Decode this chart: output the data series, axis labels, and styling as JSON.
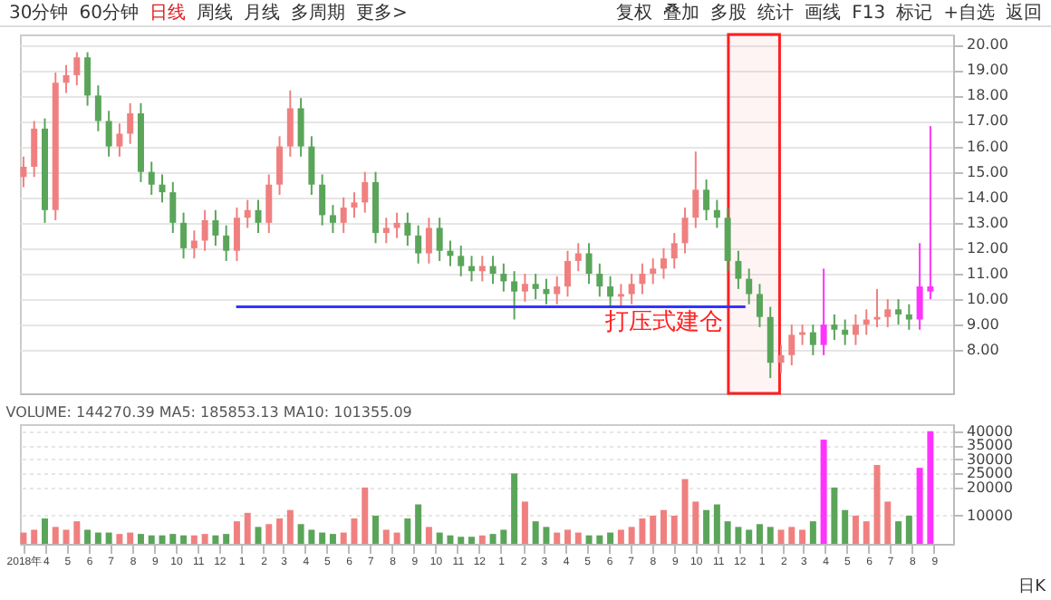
{
  "chart_data": [
    {
      "type": "candlestick",
      "tick_labels": "y",
      "grid": "y",
      "annotations": [
        "30分钟",
        "60分钟",
        "日线",
        "周线",
        "月线",
        "多周期",
        "更多>",
        "复权",
        "叠加",
        "多股",
        "统计",
        "画线",
        "F13",
        "标记",
        "+自选",
        "返回",
        "打压式建仓"
      ],
      "x": [
        "2018-03-01",
        "2018-03-16",
        "2018-03-31",
        "2018-04-15",
        "2018-04-30",
        "2018-05-15",
        "2018-05-30",
        "2018-06-14",
        "2018-06-29",
        "2018-07-14",
        "2018-07-29",
        "2018-08-13",
        "2018-08-28",
        "2018-09-12",
        "2018-09-27",
        "2018-10-12",
        "2018-10-27",
        "2018-11-11",
        "2018-11-26",
        "2018-12-11",
        "2018-12-26",
        "2019-01-10",
        "2019-01-25",
        "2019-02-09",
        "2019-02-24",
        "2019-03-11",
        "2019-03-26",
        "2019-04-10",
        "2019-04-25",
        "2019-05-10",
        "2019-05-25",
        "2019-06-09",
        "2019-06-24",
        "2019-07-09",
        "2019-07-24",
        "2019-08-08",
        "2019-08-23",
        "2019-09-07",
        "2019-09-22",
        "2019-10-07",
        "2019-10-22",
        "2019-11-06",
        "2019-11-21",
        "2019-12-06",
        "2019-12-21",
        "2020-01-05",
        "2020-01-20",
        "2020-02-04",
        "2020-02-19",
        "2020-03-05",
        "2020-03-20",
        "2020-04-04",
        "2020-04-19",
        "2020-05-04",
        "2020-05-19",
        "2020-06-03",
        "2020-06-18",
        "2020-07-03",
        "2020-07-18",
        "2020-08-02",
        "2020-08-17",
        "2020-09-01",
        "2020-09-16",
        "2020-10-01",
        "2020-10-16",
        "2020-10-31",
        "2020-11-15",
        "2020-11-30",
        "2020-12-15",
        "2020-12-30",
        "2021-01-14",
        "2021-01-29",
        "2021-02-13",
        "2021-02-28",
        "2021-03-15",
        "2021-03-30",
        "2021-04-14",
        "2021-04-29",
        "2021-05-14",
        "2021-05-29",
        "2021-06-13",
        "2021-06-28",
        "2021-07-13",
        "2021-07-28",
        "2021-08-12",
        "2021-08-27"
      ],
      "ohlc": [
        [
          14.8,
          15.6,
          14.4,
          15.2
        ],
        [
          15.2,
          17.0,
          14.8,
          16.7
        ],
        [
          16.7,
          17.1,
          13.0,
          13.5
        ],
        [
          13.5,
          18.9,
          13.1,
          18.5
        ],
        [
          18.5,
          19.2,
          18.1,
          18.8
        ],
        [
          18.8,
          19.7,
          18.4,
          19.5
        ],
        [
          19.5,
          19.7,
          17.6,
          18.0
        ],
        [
          18.0,
          18.4,
          16.6,
          17.0
        ],
        [
          17.0,
          17.4,
          15.6,
          16.0
        ],
        [
          16.0,
          16.9,
          15.6,
          16.5
        ],
        [
          16.5,
          17.7,
          16.1,
          17.3
        ],
        [
          17.3,
          17.7,
          14.6,
          15.0
        ],
        [
          15.0,
          15.4,
          14.1,
          14.5
        ],
        [
          14.5,
          14.9,
          13.8,
          14.2
        ],
        [
          14.2,
          14.6,
          12.6,
          13.0
        ],
        [
          13.0,
          13.4,
          11.6,
          12.0
        ],
        [
          12.0,
          12.7,
          11.6,
          12.3
        ],
        [
          12.3,
          13.5,
          11.9,
          13.1
        ],
        [
          13.1,
          13.5,
          12.1,
          12.5
        ],
        [
          12.5,
          12.9,
          11.5,
          11.9
        ],
        [
          11.9,
          13.6,
          11.5,
          13.2
        ],
        [
          13.2,
          13.9,
          12.8,
          13.5
        ],
        [
          13.5,
          13.9,
          12.6,
          13.0
        ],
        [
          13.0,
          14.9,
          12.6,
          14.5
        ],
        [
          14.5,
          16.4,
          14.1,
          16.0
        ],
        [
          16.0,
          18.2,
          15.6,
          17.5
        ],
        [
          17.5,
          17.9,
          15.6,
          16.0
        ],
        [
          16.0,
          16.4,
          14.1,
          14.5
        ],
        [
          14.5,
          14.9,
          12.9,
          13.3
        ],
        [
          13.3,
          13.7,
          12.6,
          13.0
        ],
        [
          13.0,
          14.0,
          12.6,
          13.6
        ],
        [
          13.6,
          14.2,
          13.2,
          13.8
        ],
        [
          13.8,
          15.0,
          13.4,
          14.6
        ],
        [
          14.6,
          15.0,
          12.2,
          12.6
        ],
        [
          12.6,
          13.2,
          12.2,
          12.8
        ],
        [
          12.8,
          13.4,
          12.4,
          13.0
        ],
        [
          13.0,
          13.4,
          12.1,
          12.5
        ],
        [
          12.5,
          12.9,
          11.4,
          11.8
        ],
        [
          11.8,
          13.2,
          11.4,
          12.8
        ],
        [
          12.8,
          13.2,
          11.5,
          11.9
        ],
        [
          11.9,
          12.3,
          11.3,
          11.7
        ],
        [
          11.7,
          12.1,
          10.9,
          11.3
        ],
        [
          11.3,
          11.7,
          10.7,
          11.1
        ],
        [
          11.1,
          11.7,
          10.7,
          11.3
        ],
        [
          11.3,
          11.7,
          10.6,
          11.0
        ],
        [
          11.0,
          11.4,
          10.3,
          10.7
        ],
        [
          10.7,
          11.1,
          9.2,
          10.3
        ],
        [
          10.3,
          11.0,
          9.9,
          10.6
        ],
        [
          10.6,
          11.0,
          10.0,
          10.4
        ],
        [
          10.4,
          10.8,
          9.8,
          10.2
        ],
        [
          10.2,
          10.9,
          9.8,
          10.5
        ],
        [
          10.5,
          11.9,
          10.1,
          11.5
        ],
        [
          11.5,
          12.2,
          11.1,
          11.8
        ],
        [
          11.8,
          12.2,
          10.6,
          11.0
        ],
        [
          11.0,
          11.4,
          10.1,
          10.5
        ],
        [
          10.5,
          10.9,
          9.7,
          10.1
        ],
        [
          10.1,
          10.6,
          9.7,
          10.2
        ],
        [
          10.2,
          11.0,
          9.8,
          10.6
        ],
        [
          10.6,
          11.4,
          10.2,
          11.0
        ],
        [
          11.0,
          11.6,
          10.6,
          11.2
        ],
        [
          11.2,
          12.0,
          10.8,
          11.6
        ],
        [
          11.6,
          12.6,
          11.2,
          12.2
        ],
        [
          12.2,
          13.6,
          11.8,
          13.2
        ],
        [
          13.2,
          15.8,
          12.8,
          14.3
        ],
        [
          14.3,
          14.7,
          13.1,
          13.5
        ],
        [
          13.5,
          13.9,
          12.8,
          13.2
        ],
        [
          13.2,
          13.6,
          11.1,
          11.5
        ],
        [
          11.5,
          11.9,
          10.4,
          10.8
        ],
        [
          10.8,
          11.2,
          9.8,
          10.2
        ],
        [
          10.2,
          10.6,
          8.9,
          9.3
        ],
        [
          9.3,
          9.7,
          6.9,
          7.5
        ],
        [
          7.5,
          8.2,
          7.1,
          7.8
        ],
        [
          7.8,
          9.0,
          7.4,
          8.6
        ],
        [
          8.6,
          9.0,
          8.2,
          8.7
        ],
        [
          8.7,
          9.0,
          7.8,
          8.2
        ],
        [
          8.2,
          11.2,
          7.8,
          9.0
        ],
        [
          9.0,
          9.4,
          8.4,
          8.8
        ],
        [
          8.8,
          9.2,
          8.2,
          8.6
        ],
        [
          8.6,
          9.4,
          8.2,
          9.0
        ],
        [
          9.0,
          9.6,
          8.6,
          9.2
        ],
        [
          9.2,
          10.4,
          8.9,
          9.3
        ],
        [
          9.3,
          10.0,
          8.9,
          9.6
        ],
        [
          9.6,
          10.0,
          9.0,
          9.4
        ],
        [
          9.4,
          9.8,
          8.8,
          9.2
        ],
        [
          9.2,
          12.2,
          8.8,
          10.5
        ],
        [
          10.5,
          16.8,
          10.0,
          10.3
        ]
      ],
      "colors": [
        "#f08080",
        "#f08080",
        "#5aa55a",
        "#f08080",
        "#f08080",
        "#f08080",
        "#5aa55a",
        "#5aa55a",
        "#5aa55a",
        "#f08080",
        "#f08080",
        "#5aa55a",
        "#5aa55a",
        "#5aa55a",
        "#5aa55a",
        "#5aa55a",
        "#f08080",
        "#f08080",
        "#5aa55a",
        "#5aa55a",
        "#f08080",
        "#f08080",
        "#5aa55a",
        "#f08080",
        "#f08080",
        "#f08080",
        "#5aa55a",
        "#5aa55a",
        "#5aa55a",
        "#5aa55a",
        "#f08080",
        "#f08080",
        "#f08080",
        "#5aa55a",
        "#f08080",
        "#f08080",
        "#5aa55a",
        "#5aa55a",
        "#f08080",
        "#5aa55a",
        "#5aa55a",
        "#5aa55a",
        "#5aa55a",
        "#f08080",
        "#5aa55a",
        "#5aa55a",
        "#5aa55a",
        "#f08080",
        "#5aa55a",
        "#5aa55a",
        "#f08080",
        "#f08080",
        "#f08080",
        "#5aa55a",
        "#5aa55a",
        "#5aa55a",
        "#f08080",
        "#f08080",
        "#f08080",
        "#f08080",
        "#f08080",
        "#f08080",
        "#f08080",
        "#f08080",
        "#5aa55a",
        "#5aa55a",
        "#5aa55a",
        "#5aa55a",
        "#5aa55a",
        "#5aa55a",
        "#5aa55a",
        "#f08080",
        "#f08080",
        "#f08080",
        "#5aa55a",
        "#ff33ff",
        "#5aa55a",
        "#5aa55a",
        "#f08080",
        "#f08080",
        "#f08080",
        "#f08080",
        "#5aa55a",
        "#5aa55a",
        "#ff33ff",
        "#ff33ff"
      ],
      "series": [
        {
          "type": "line",
          "color": "#3333ff",
          "x": [
            "2018-12-25",
            "2020-12-10"
          ],
          "values": [
            9.7,
            9.7
          ]
        }
      ],
      "bands": [
        {
          "axis": "x",
          "from": "2020-11-16",
          "to": "2021-01-27",
          "color": "#ff2020"
        }
      ],
      "xlim": [
        "2018-02-24",
        "2021-09-28"
      ],
      "ylim": [
        6.3,
        20.4
      ],
      "yticks": [
        {
          "value": 8,
          "label": "8.00"
        },
        {
          "value": 9,
          "label": "9.00"
        },
        {
          "value": 10,
          "label": "10.00"
        },
        {
          "value": 11,
          "label": "11.00"
        },
        {
          "value": 12,
          "label": "12.00"
        },
        {
          "value": 13,
          "label": "13.00"
        },
        {
          "value": 14,
          "label": "14.00"
        },
        {
          "value": 15,
          "label": "15.00"
        },
        {
          "value": 16,
          "label": "16.00"
        },
        {
          "value": 17,
          "label": "17.00"
        },
        {
          "value": 18,
          "label": "18.00"
        },
        {
          "value": 19,
          "label": "19.00"
        },
        {
          "value": 20,
          "label": "20.00"
        }
      ]
    },
    {
      "type": "bar",
      "title": "VOLUME: 144270.39  MA5: 185853.13  MA10: 101355.09",
      "grid": "y",
      "annotations": [
        "日K"
      ],
      "x": [
        "2018-03-01",
        "2018-03-16",
        "2018-03-31",
        "2018-04-15",
        "2018-04-30",
        "2018-05-15",
        "2018-05-30",
        "2018-06-14",
        "2018-06-29",
        "2018-07-14",
        "2018-07-29",
        "2018-08-13",
        "2018-08-28",
        "2018-09-12",
        "2018-09-27",
        "2018-10-12",
        "2018-10-27",
        "2018-11-11",
        "2018-11-26",
        "2018-12-11",
        "2018-12-26",
        "2019-01-10",
        "2019-01-25",
        "2019-02-09",
        "2019-02-24",
        "2019-03-11",
        "2019-03-26",
        "2019-04-10",
        "2019-04-25",
        "2019-05-10",
        "2019-05-25",
        "2019-06-09",
        "2019-06-24",
        "2019-07-09",
        "2019-07-24",
        "2019-08-08",
        "2019-08-23",
        "2019-09-07",
        "2019-09-22",
        "2019-10-07",
        "2019-10-22",
        "2019-11-06",
        "2019-11-21",
        "2019-12-06",
        "2019-12-21",
        "2020-01-05",
        "2020-01-20",
        "2020-02-04",
        "2020-02-19",
        "2020-03-05",
        "2020-03-20",
        "2020-04-04",
        "2020-04-19",
        "2020-05-04",
        "2020-05-19",
        "2020-06-03",
        "2020-06-18",
        "2020-07-03",
        "2020-07-18",
        "2020-08-02",
        "2020-08-17",
        "2020-09-01",
        "2020-09-16",
        "2020-10-01",
        "2020-10-16",
        "2020-10-31",
        "2020-11-15",
        "2020-11-30",
        "2020-12-15",
        "2020-12-30",
        "2021-01-14",
        "2021-01-29",
        "2021-02-13",
        "2021-02-28",
        "2021-03-15",
        "2021-03-30",
        "2021-04-14",
        "2021-04-29",
        "2021-05-14",
        "2021-05-29",
        "2021-06-13",
        "2021-06-28",
        "2021-07-13",
        "2021-07-28",
        "2021-08-12",
        "2021-08-27"
      ],
      "values": [
        4000,
        5000,
        9000,
        6000,
        5000,
        8000,
        5000,
        4000,
        4000,
        3500,
        4000,
        3500,
        3000,
        3000,
        3500,
        3000,
        3000,
        3500,
        3000,
        3500,
        8000,
        11000,
        6000,
        7000,
        9000,
        12000,
        7000,
        5000,
        4000,
        3500,
        4000,
        9000,
        20000,
        10000,
        5000,
        4000,
        9000,
        14000,
        6000,
        4000,
        3000,
        2500,
        2500,
        3000,
        3500,
        5000,
        25000,
        15000,
        8000,
        6000,
        4000,
        5000,
        4000,
        3000,
        3000,
        4000,
        5000,
        6000,
        9000,
        10000,
        12000,
        10000,
        23000,
        15000,
        12000,
        14000,
        8000,
        6000,
        5000,
        7000,
        6000,
        5000,
        6000,
        5000,
        8000,
        37000,
        20000,
        12000,
        10000,
        8000,
        28000,
        15000,
        8000,
        10000,
        27000,
        40000
      ],
      "colors": [
        "#f08080",
        "#f08080",
        "#5aa55a",
        "#f08080",
        "#f08080",
        "#f08080",
        "#5aa55a",
        "#5aa55a",
        "#5aa55a",
        "#f08080",
        "#f08080",
        "#5aa55a",
        "#5aa55a",
        "#5aa55a",
        "#5aa55a",
        "#5aa55a",
        "#f08080",
        "#f08080",
        "#5aa55a",
        "#5aa55a",
        "#f08080",
        "#f08080",
        "#5aa55a",
        "#f08080",
        "#f08080",
        "#f08080",
        "#5aa55a",
        "#5aa55a",
        "#5aa55a",
        "#5aa55a",
        "#f08080",
        "#f08080",
        "#f08080",
        "#5aa55a",
        "#f08080",
        "#f08080",
        "#5aa55a",
        "#5aa55a",
        "#f08080",
        "#5aa55a",
        "#5aa55a",
        "#5aa55a",
        "#5aa55a",
        "#f08080",
        "#5aa55a",
        "#5aa55a",
        "#5aa55a",
        "#f08080",
        "#5aa55a",
        "#5aa55a",
        "#f08080",
        "#f08080",
        "#f08080",
        "#5aa55a",
        "#5aa55a",
        "#5aa55a",
        "#f08080",
        "#f08080",
        "#f08080",
        "#f08080",
        "#f08080",
        "#f08080",
        "#f08080",
        "#f08080",
        "#5aa55a",
        "#5aa55a",
        "#5aa55a",
        "#5aa55a",
        "#5aa55a",
        "#5aa55a",
        "#5aa55a",
        "#f08080",
        "#f08080",
        "#f08080",
        "#5aa55a",
        "#ff33ff",
        "#5aa55a",
        "#5aa55a",
        "#f08080",
        "#f08080",
        "#f08080",
        "#f08080",
        "#5aa55a",
        "#5aa55a",
        "#ff33ff",
        "#ff33ff"
      ],
      "xlim": [
        "2018-02-24",
        "2021-09-28"
      ],
      "ylim": [
        0,
        42500
      ],
      "yticks": [
        10000,
        20000,
        25000,
        30000,
        35000,
        40000
      ],
      "xticks": [
        {
          "value": "2018-03-01",
          "label": "2018年"
        },
        {
          "value": "2018-04-01",
          "label": "4"
        },
        {
          "value": "2018-05-01",
          "label": "5"
        },
        {
          "value": "2018-06-01",
          "label": "6"
        },
        {
          "value": "2018-07-01",
          "label": "7"
        },
        {
          "value": "2018-08-01",
          "label": "8"
        },
        {
          "value": "2018-09-01",
          "label": "9"
        },
        {
          "value": "2018-10-01",
          "label": "10"
        },
        {
          "value": "2018-11-01",
          "label": "11"
        },
        {
          "value": "2018-12-01",
          "label": "12"
        },
        {
          "value": "2019-01-01",
          "label": "1"
        },
        {
          "value": "2019-02-01",
          "label": "2"
        },
        {
          "value": "2019-03-01",
          "label": "3"
        },
        {
          "value": "2019-04-01",
          "label": "4"
        },
        {
          "value": "2019-05-01",
          "label": "5"
        },
        {
          "value": "2019-06-01",
          "label": "6"
        },
        {
          "value": "2019-07-01",
          "label": "7"
        },
        {
          "value": "2019-08-01",
          "label": "8"
        },
        {
          "value": "2019-09-01",
          "label": "9"
        },
        {
          "value": "2019-10-01",
          "label": "10"
        },
        {
          "value": "2019-11-01",
          "label": "11"
        },
        {
          "value": "2019-12-01",
          "label": "12"
        },
        {
          "value": "2020-01-01",
          "label": "1"
        },
        {
          "value": "2020-02-01",
          "label": "2"
        },
        {
          "value": "2020-03-01",
          "label": "3"
        },
        {
          "value": "2020-04-01",
          "label": "4"
        },
        {
          "value": "2020-05-01",
          "label": "5"
        },
        {
          "value": "2020-06-01",
          "label": "6"
        },
        {
          "value": "2020-07-01",
          "label": "7"
        },
        {
          "value": "2020-08-01",
          "label": "8"
        },
        {
          "value": "2020-09-01",
          "label": "9"
        },
        {
          "value": "2020-10-01",
          "label": "10"
        },
        {
          "value": "2020-11-01",
          "label": "11"
        },
        {
          "value": "2020-12-01",
          "label": "12"
        },
        {
          "value": "2021-01-01",
          "label": "1"
        },
        {
          "value": "2021-02-01",
          "label": "2"
        },
        {
          "value": "2021-03-01",
          "label": "3"
        },
        {
          "value": "2021-04-01",
          "label": "4"
        },
        {
          "value": "2021-05-01",
          "label": "5"
        },
        {
          "value": "2021-06-01",
          "label": "6"
        },
        {
          "value": "2021-07-01",
          "label": "7"
        },
        {
          "value": "2021-08-01",
          "label": "8"
        },
        {
          "value": "2021-09-01",
          "label": "9"
        }
      ]
    }
  ]
}
